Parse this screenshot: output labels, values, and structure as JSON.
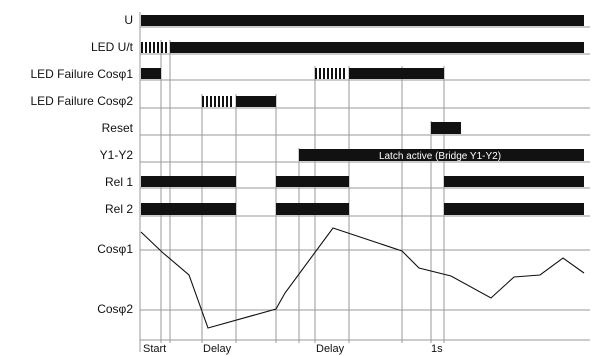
{
  "rows": [
    {
      "label": "U"
    },
    {
      "label": "LED U/t"
    },
    {
      "label": "LED Failure Cosφ1"
    },
    {
      "label": "LED Failure Cosφ2"
    },
    {
      "label": "Reset"
    },
    {
      "label": "Y1-Y2"
    },
    {
      "label": "Rel 1"
    },
    {
      "label": "Rel 2"
    }
  ],
  "latch_text": "Latch active (Bridge Y1-Y2)",
  "cos_levels": {
    "upper": "Cosφ1",
    "lower": "Cosφ2"
  },
  "time_axis": [
    {
      "label": "Start"
    },
    {
      "label": "Delay"
    },
    {
      "label": "Delay"
    },
    {
      "label": "1s"
    }
  ],
  "colors": {
    "signal": "#111111",
    "grid": "#9a9a9a"
  }
}
